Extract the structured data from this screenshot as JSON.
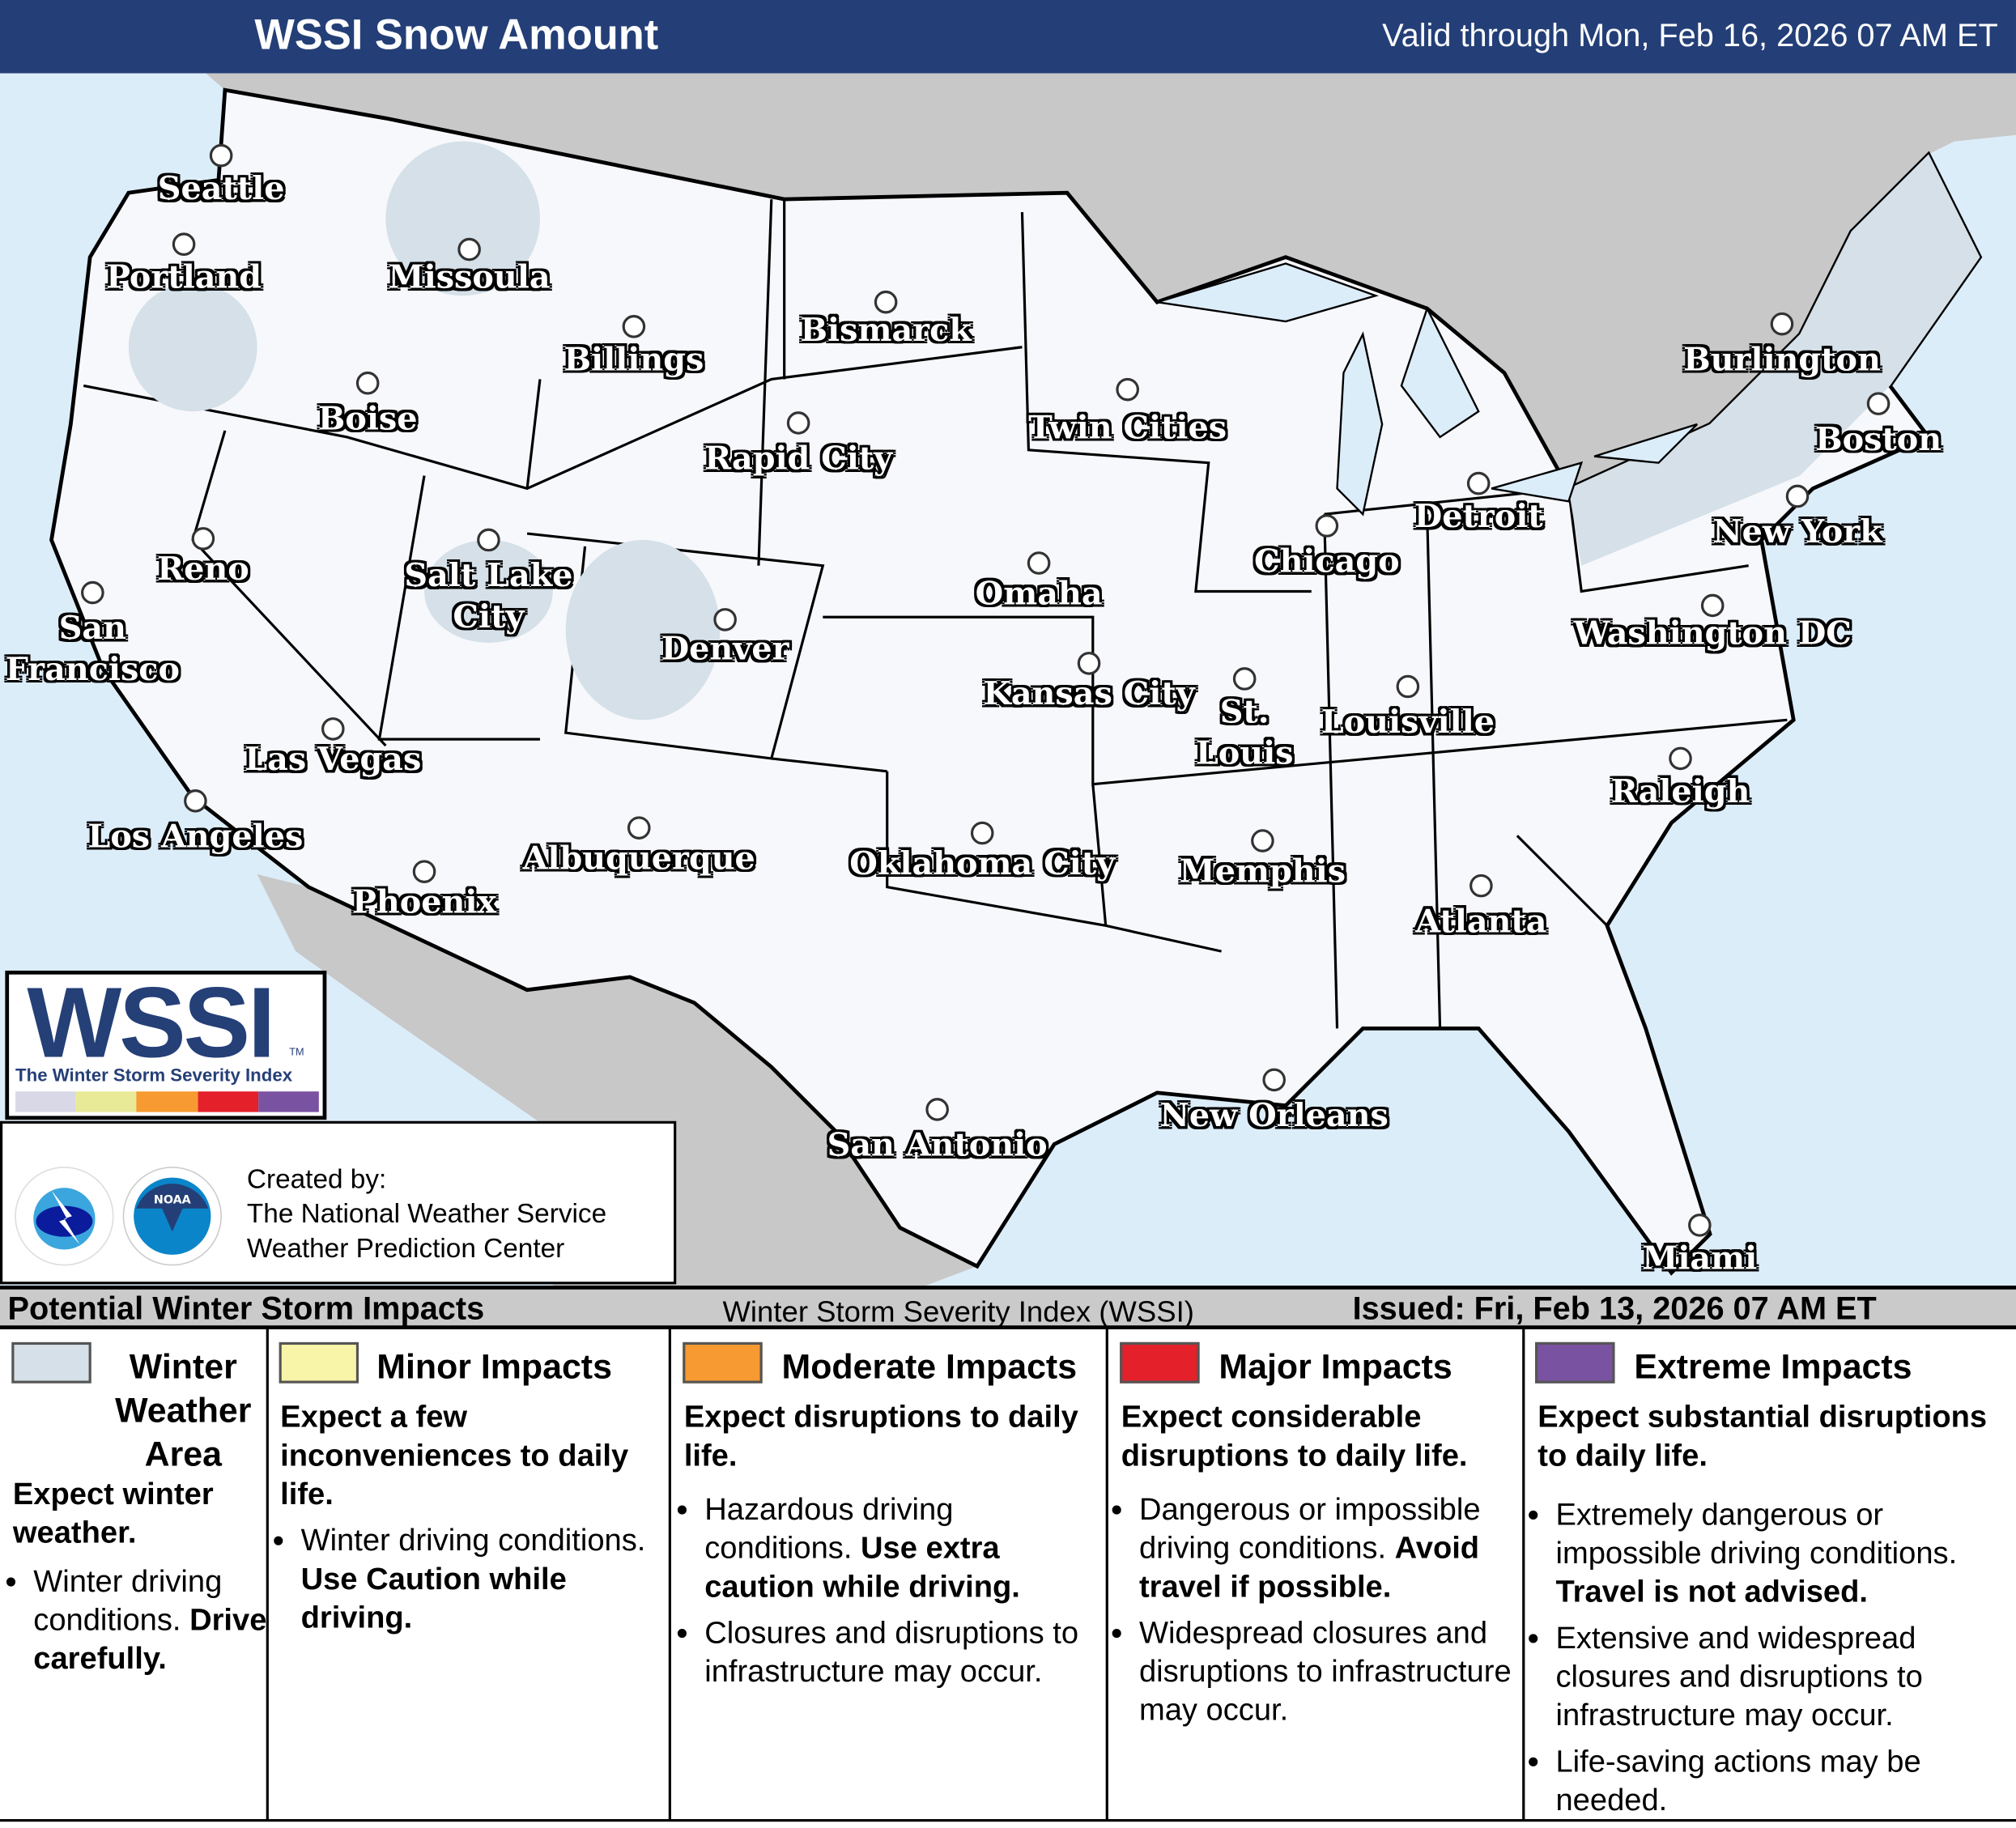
{
  "header": {
    "title": "WSSI Snow Amount",
    "valid": "Valid through Mon, Feb 16, 2026 07 AM ET"
  },
  "colors": {
    "header_bg": "#243f77",
    "ocean": "#dcedfa",
    "land_foreign": "#c8c8c8",
    "us_land": "#f7f8fc",
    "winter_weather": "#d5e0e8",
    "minor": "#f9f5a8",
    "moderate": "#f79a31",
    "major": "#e4202a",
    "extreme": "#7a52a2"
  },
  "cities": [
    "Seattle",
    "Portland",
    "Missoula",
    "Billings",
    "Bismarck",
    "Boise",
    "Rapid City",
    "Twin Cities",
    "Burlington",
    "Boston",
    "Detroit",
    "New York",
    "Reno",
    "Salt Lake City",
    "Chicago",
    "Omaha",
    "Denver",
    "Washington DC",
    "San Francisco",
    "Kansas City",
    "St. Louis",
    "Louisville",
    "Las Vegas",
    "Raleigh",
    "Los Angeles",
    "Oklahoma City",
    "Memphis",
    "Albuquerque",
    "Phoenix",
    "Atlanta",
    "New Orleans",
    "San Antonio",
    "Miami"
  ],
  "logo": {
    "text": "WSSI",
    "tm": "TM",
    "subtitle": "The Winter Storm Severity Index"
  },
  "credit": {
    "line1": "Created by:",
    "line2": "The National Weather Service",
    "line3": "Weather Prediction Center",
    "nws_logo": "NATIONAL WEATHER SERVICE",
    "noaa_logo": "NOAA"
  },
  "legend_bar": {
    "left": "Potential Winter Storm Impacts",
    "center": "Winter Storm Severity Index (WSSI)",
    "right": "Issued: Fri, Feb 13, 2026 07 AM ET"
  },
  "legend": [
    {
      "title": "Winter Weather Area",
      "head": "Expect winter weather.",
      "bullets": [
        "Winter driving conditions. "
      ],
      "bold": [
        "Drive carefully."
      ]
    },
    {
      "title": "Minor Impacts",
      "head": "Expect a few inconveniences to daily life.",
      "bullets": [
        "Winter driving conditions. "
      ],
      "bold": [
        "Use Caution while driving."
      ]
    },
    {
      "title": "Moderate Impacts",
      "head": "Expect disruptions to daily life.",
      "bullets": [
        "Hazardous driving conditions. ",
        "Closures and disruptions to infrastructure may occur."
      ],
      "bold": [
        "Use extra caution while driving."
      ]
    },
    {
      "title": "Major Impacts",
      "head": "Expect considerable disruptions to daily life.",
      "bullets": [
        "Dangerous or impossible driving conditions. ",
        "Widespread closures and disruptions to infrastructure may occur."
      ],
      "bold": [
        "Avoid travel if possible."
      ]
    },
    {
      "title": "Extreme Impacts",
      "head": "Expect substantial disruptions to daily life.",
      "bullets": [
        "Extremely dangerous or impossible driving conditions. ",
        "Extensive and widespread closures and disruptions to infrastructure may occur.",
        "Life-saving actions may be needed."
      ],
      "bold": [
        "Travel is not advised."
      ]
    }
  ]
}
